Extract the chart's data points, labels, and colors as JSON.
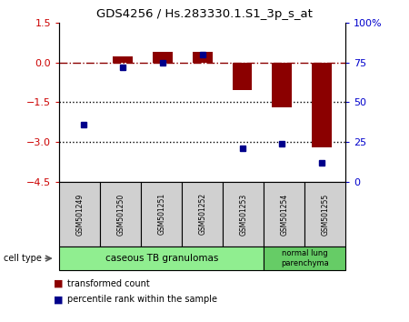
{
  "title": "GDS4256 / Hs.283330.1.S1_3p_s_at",
  "samples": [
    "GSM501249",
    "GSM501250",
    "GSM501251",
    "GSM501252",
    "GSM501253",
    "GSM501254",
    "GSM501255"
  ],
  "transformed_count": [
    -0.02,
    0.22,
    0.38,
    0.38,
    -1.05,
    -1.7,
    -3.2
  ],
  "percentile_rank": [
    36,
    72,
    75,
    80,
    21,
    24,
    12
  ],
  "bar_color": "#8B0000",
  "dot_color": "#00008B",
  "ylim_left": [
    -4.5,
    1.5
  ],
  "ylim_right": [
    0,
    100
  ],
  "yticks_left": [
    1.5,
    0,
    -1.5,
    -3,
    -4.5
  ],
  "yticks_right": [
    0,
    25,
    50,
    75,
    100
  ],
  "dotted_lines": [
    -1.5,
    -3
  ],
  "cell_type_groups": [
    {
      "label": "caseous TB granulomas",
      "n_samples": 5,
      "color": "#90ee90"
    },
    {
      "label": "normal lung\nparenchyma",
      "n_samples": 2,
      "color": "#66cc66"
    }
  ],
  "cell_type_label": "cell type",
  "legend_items": [
    {
      "label": "transformed count",
      "color": "#8B0000"
    },
    {
      "label": "percentile rank within the sample",
      "color": "#00008B"
    }
  ],
  "background_color": "#ffffff",
  "plot_bg_color": "#ffffff",
  "tick_label_color_left": "#cc0000",
  "tick_label_color_right": "#0000cc",
  "sample_box_color": "#d0d0d0",
  "bar_width": 0.5
}
